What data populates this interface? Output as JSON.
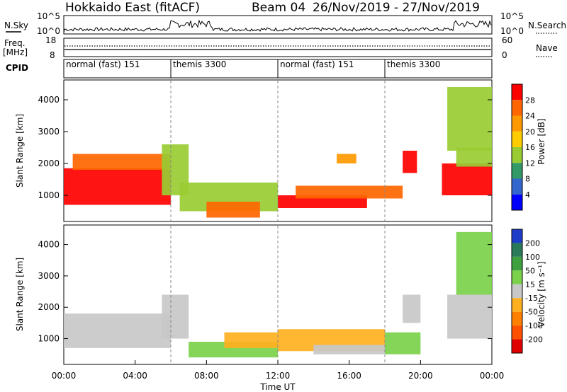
{
  "header": {
    "title": "Hokkaido East (fitACF)",
    "beam": "Beam 04",
    "date_range": "26/Nov/2019 - 27/Nov/2019"
  },
  "noise_panel": {
    "left_label": "N.Sky",
    "right_label": "N.Search",
    "left_top_tick": "10^5",
    "left_bottom_tick": "10^0",
    "right_top_tick": "10^5",
    "right_bottom_tick": "10^0"
  },
  "freq_panel": {
    "left_label_1": "Freq.",
    "left_label_2": "[MHz]",
    "left_top_tick": "18",
    "left_bottom_tick": "8",
    "right_label": "Nave",
    "right_top_tick": "60",
    "right_bottom_tick": "0"
  },
  "cpid_panel": {
    "label": "CPID",
    "segments": [
      {
        "label": "normal (fast) 151",
        "start_hour": 0,
        "end_hour": 6
      },
      {
        "label": "themis 3300",
        "start_hour": 6,
        "end_hour": 12
      },
      {
        "label": "normal (fast) 151",
        "start_hour": 12,
        "end_hour": 18
      },
      {
        "label": "themis 3300",
        "start_hour": 18,
        "end_hour": 24
      }
    ]
  },
  "power_panel": {
    "ylabel": "Slant Range [km]",
    "colorbar_label": "Power [dB]",
    "colorbar_ticks": [
      "28",
      "24",
      "20",
      "16",
      "12",
      "8",
      "4"
    ],
    "colorbar_colors": [
      "#ff0000",
      "#ff6600",
      "#ff9900",
      "#ffcc00",
      "#99cc33",
      "#339966",
      "#3366cc",
      "#0000ff"
    ]
  },
  "velocity_panel": {
    "ylabel": "Slant Range [km]",
    "colorbar_label": "Velocity [m s⁻¹]",
    "colorbar_ticks": [
      "200",
      "100",
      "50",
      "15",
      "-15",
      "-50",
      "-100",
      "-200"
    ],
    "colorbar_colors": [
      "#1e3cc8",
      "#2a7a5a",
      "#3fa040",
      "#7bd24a",
      "#c8c8c8",
      "#ffb020",
      "#ff8000",
      "#ff5000",
      "#e00000"
    ]
  },
  "x_axis": {
    "label": "Time UT",
    "ticks": [
      "00:00",
      "04:00",
      "08:00",
      "12:00",
      "16:00",
      "20:00",
      "00:00"
    ]
  },
  "chart_data": {
    "type": "heatmap",
    "title": "Hokkaido East (fitACF)",
    "subtitle": "Beam 04 26/Nov/2019 - 27/Nov/2019",
    "xlabel": "Time UT",
    "x_ticks": [
      "00:00",
      "04:00",
      "08:00",
      "12:00",
      "16:00",
      "20:00",
      "00:00"
    ],
    "xlim_hours": [
      0,
      24
    ],
    "ylabel": "Slant Range [km]",
    "ylim_km": [
      200,
      4600
    ],
    "y_ticks": [
      1000,
      2000,
      3000,
      4000
    ],
    "power_levels_db": [
      4,
      8,
      12,
      16,
      20,
      24,
      28
    ],
    "velocity_levels": [
      -200,
      -100,
      -50,
      -15,
      15,
      50,
      100,
      200
    ],
    "power_regions": [
      {
        "t0": 0.0,
        "t1": 6.0,
        "r0": 700,
        "r1": 1850,
        "level": 28
      },
      {
        "t0": 0.5,
        "t1": 6.0,
        "r0": 1800,
        "r1": 2300,
        "level": 24
      },
      {
        "t0": 5.5,
        "t1": 7.0,
        "r0": 1000,
        "r1": 2600,
        "level": 12
      },
      {
        "t0": 6.5,
        "t1": 12.0,
        "r0": 500,
        "r1": 1400,
        "level": 12
      },
      {
        "t0": 8.0,
        "t1": 11.0,
        "r0": 300,
        "r1": 800,
        "level": 24
      },
      {
        "t0": 12.0,
        "t1": 17.0,
        "r0": 600,
        "r1": 1000,
        "level": 28
      },
      {
        "t0": 13.0,
        "t1": 19.0,
        "r0": 900,
        "r1": 1300,
        "level": 24
      },
      {
        "t0": 15.3,
        "t1": 16.4,
        "r0": 2000,
        "r1": 2300,
        "level": 20
      },
      {
        "t0": 19.0,
        "t1": 19.8,
        "r0": 1700,
        "r1": 2400,
        "level": 28
      },
      {
        "t0": 21.2,
        "t1": 24.0,
        "r0": 1000,
        "r1": 2000,
        "level": 28
      },
      {
        "t0": 22.0,
        "t1": 24.0,
        "r0": 1900,
        "r1": 2500,
        "level": 12
      },
      {
        "t0": 21.5,
        "t1": 24.0,
        "r0": 2400,
        "r1": 4400,
        "level": 12
      }
    ],
    "velocity_regions": [
      {
        "t0": 0.0,
        "t1": 6.0,
        "r0": 700,
        "r1": 1800,
        "level": 0
      },
      {
        "t0": 5.5,
        "t1": 7.0,
        "r0": 1000,
        "r1": 2400,
        "level": 0
      },
      {
        "t0": 7.0,
        "t1": 12.0,
        "r0": 400,
        "r1": 900,
        "level": 50
      },
      {
        "t0": 9.0,
        "t1": 12.0,
        "r0": 700,
        "r1": 1200,
        "level": -50
      },
      {
        "t0": 12.0,
        "t1": 18.0,
        "r0": 600,
        "r1": 1300,
        "level": -50
      },
      {
        "t0": 14.0,
        "t1": 18.0,
        "r0": 500,
        "r1": 800,
        "level": 0
      },
      {
        "t0": 18.0,
        "t1": 20.0,
        "r0": 500,
        "r1": 1200,
        "level": 50
      },
      {
        "t0": 19.0,
        "t1": 20.0,
        "r0": 1500,
        "r1": 2400,
        "level": 0
      },
      {
        "t0": 21.5,
        "t1": 24.0,
        "r0": 1000,
        "r1": 2400,
        "level": 0
      },
      {
        "t0": 22.0,
        "t1": 24.0,
        "r0": 2400,
        "r1": 4400,
        "level": 15
      }
    ]
  }
}
